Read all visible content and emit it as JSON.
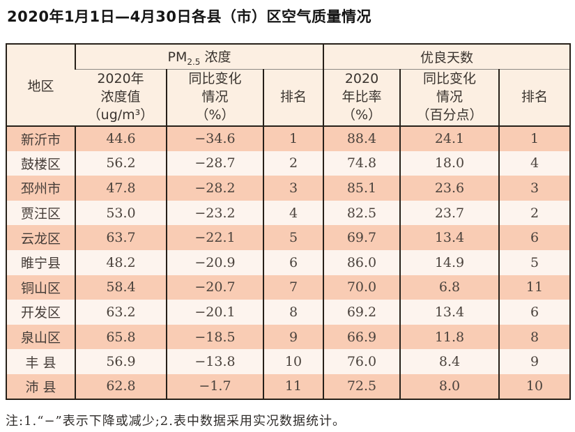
{
  "title": "2020年1月1日—4月30日各县（市）区空气质量情况",
  "table": {
    "corner_header": "地区",
    "pm_group": {
      "prefix": "PM",
      "sub": "2.5",
      "suffix": " 浓度"
    },
    "good_group": "优良天数",
    "sub_headers": {
      "pm_value": "2020年\n浓度值\n（ug/m³）",
      "pm_change": "同比变化\n情况\n（%）",
      "pm_rank": "排名",
      "good_ratio": "2020\n年比率\n（%）",
      "good_change": "同比变化\n情况\n（百分点）",
      "good_rank": "排名"
    },
    "columns": [
      "region",
      "pm_value",
      "pm_change",
      "pm_rank",
      "good_ratio",
      "good_change",
      "good_rank"
    ],
    "rows": [
      {
        "region": "新沂市",
        "pm_value": "44.6",
        "pm_change": "−34.6",
        "pm_rank": "1",
        "good_ratio": "88.4",
        "good_change": "24.1",
        "good_rank": "1"
      },
      {
        "region": "鼓楼区",
        "pm_value": "56.2",
        "pm_change": "−28.7",
        "pm_rank": "2",
        "good_ratio": "74.8",
        "good_change": "18.0",
        "good_rank": "4"
      },
      {
        "region": "邳州市",
        "pm_value": "47.8",
        "pm_change": "−28.2",
        "pm_rank": "3",
        "good_ratio": "85.1",
        "good_change": "23.6",
        "good_rank": "3"
      },
      {
        "region": "贾汪区",
        "pm_value": "53.0",
        "pm_change": "−23.2",
        "pm_rank": "4",
        "good_ratio": "82.5",
        "good_change": "23.7",
        "good_rank": "2"
      },
      {
        "region": "云龙区",
        "pm_value": "63.7",
        "pm_change": "−22.1",
        "pm_rank": "5",
        "good_ratio": "69.7",
        "good_change": "13.4",
        "good_rank": "6"
      },
      {
        "region": "睢宁县",
        "pm_value": "48.2",
        "pm_change": "−20.9",
        "pm_rank": "6",
        "good_ratio": "86.0",
        "good_change": "14.9",
        "good_rank": "5"
      },
      {
        "region": "铜山区",
        "pm_value": "58.4",
        "pm_change": "−20.7",
        "pm_rank": "7",
        "good_ratio": "70.0",
        "good_change": "6.8",
        "good_rank": "11"
      },
      {
        "region": "开发区",
        "pm_value": "63.2",
        "pm_change": "−20.1",
        "pm_rank": "8",
        "good_ratio": "69.2",
        "good_change": "13.4",
        "good_rank": "6"
      },
      {
        "region": "泉山区",
        "pm_value": "65.8",
        "pm_change": "−18.5",
        "pm_rank": "9",
        "good_ratio": "66.9",
        "good_change": "11.8",
        "good_rank": "8"
      },
      {
        "region": "丰 县",
        "pm_value": "56.9",
        "pm_change": "−13.8",
        "pm_rank": "10",
        "good_ratio": "76.0",
        "good_change": "8.4",
        "good_rank": "9"
      },
      {
        "region": "沛 县",
        "pm_value": "62.8",
        "pm_change": "−1.7",
        "pm_rank": "11",
        "good_ratio": "72.5",
        "good_change": "8.0",
        "good_rank": "10"
      }
    ]
  },
  "note": "注:1.“−”表示下降或减少;2.表中数据采用实况数据统计。",
  "colors": {
    "row_stripe_peach": "#f9ccb4",
    "row_stripe_light": "#fdf4ee",
    "header_background": "#fcefe2",
    "table_border": "#262019"
  }
}
